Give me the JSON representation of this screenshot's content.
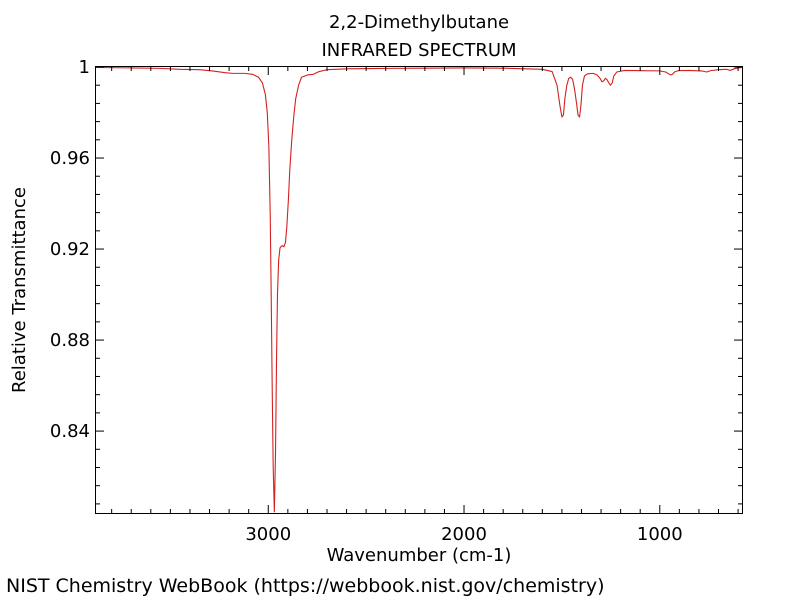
{
  "footer": {
    "credit": "NIST Chemistry WebBook (https://webbook.nist.gov/chemistry)"
  },
  "chart_data": {
    "type": "line",
    "title": "2,2-Dimethylbutane",
    "subtitle": "INFRARED SPECTRUM",
    "xlabel": "Wavenumber (cm-1)",
    "ylabel": "Relative Transmittance",
    "xlim": [
      3880,
      580
    ],
    "ylim": [
      0.804,
      1.0
    ],
    "x_reversed": true,
    "x_ticks": [
      {
        "value": 3000,
        "label": "3000"
      },
      {
        "value": 2000,
        "label": "2000"
      },
      {
        "value": 1000,
        "label": "1000"
      }
    ],
    "y_ticks": [
      {
        "value": 1.0,
        "label": "1"
      },
      {
        "value": 0.96,
        "label": "0.96"
      },
      {
        "value": 0.92,
        "label": "0.92"
      },
      {
        "value": 0.88,
        "label": "0.88"
      },
      {
        "value": 0.84,
        "label": "0.84"
      }
    ],
    "grid": false,
    "line_color": "#d62020",
    "series": [
      {
        "points": [
          [
            3880,
            0.9998
          ],
          [
            3700,
            0.9996
          ],
          [
            3550,
            0.9994
          ],
          [
            3450,
            0.999
          ],
          [
            3350,
            0.9988
          ],
          [
            3280,
            0.9982
          ],
          [
            3220,
            0.9975
          ],
          [
            3180,
            0.9972
          ],
          [
            3120,
            0.9972
          ],
          [
            3080,
            0.9968
          ],
          [
            3050,
            0.9955
          ],
          [
            3030,
            0.993
          ],
          [
            3015,
            0.988
          ],
          [
            3005,
            0.98
          ],
          [
            2997,
            0.965
          ],
          [
            2990,
            0.935
          ],
          [
            2985,
            0.9
          ],
          [
            2980,
            0.86
          ],
          [
            2975,
            0.825
          ],
          [
            2969,
            0.8045
          ],
          [
            2963,
            0.83
          ],
          [
            2958,
            0.87
          ],
          [
            2953,
            0.9
          ],
          [
            2947,
            0.915
          ],
          [
            2940,
            0.9205
          ],
          [
            2930,
            0.9215
          ],
          [
            2920,
            0.921
          ],
          [
            2912,
            0.923
          ],
          [
            2905,
            0.93
          ],
          [
            2897,
            0.942
          ],
          [
            2890,
            0.955
          ],
          [
            2880,
            0.968
          ],
          [
            2870,
            0.978
          ],
          [
            2860,
            0.986
          ],
          [
            2845,
            0.992
          ],
          [
            2830,
            0.9955
          ],
          [
            2800,
            0.9965
          ],
          [
            2770,
            0.9968
          ],
          [
            2740,
            0.998
          ],
          [
            2700,
            0.9988
          ],
          [
            2600,
            0.9992
          ],
          [
            2400,
            0.9994
          ],
          [
            2200,
            0.9995
          ],
          [
            2000,
            0.9996
          ],
          [
            1800,
            0.9995
          ],
          [
            1600,
            0.999
          ],
          [
            1550,
            0.998
          ],
          [
            1525,
            0.992
          ],
          [
            1510,
            0.983
          ],
          [
            1500,
            0.978
          ],
          [
            1492,
            0.979
          ],
          [
            1485,
            0.986
          ],
          [
            1475,
            0.992
          ],
          [
            1465,
            0.995
          ],
          [
            1455,
            0.9955
          ],
          [
            1445,
            0.9945
          ],
          [
            1435,
            0.99
          ],
          [
            1425,
            0.984
          ],
          [
            1418,
            0.979
          ],
          [
            1410,
            0.978
          ],
          [
            1403,
            0.983
          ],
          [
            1395,
            0.992
          ],
          [
            1385,
            0.996
          ],
          [
            1370,
            0.997
          ],
          [
            1340,
            0.9972
          ],
          [
            1320,
            0.9965
          ],
          [
            1305,
            0.995
          ],
          [
            1295,
            0.9935
          ],
          [
            1285,
            0.994
          ],
          [
            1278,
            0.995
          ],
          [
            1270,
            0.9945
          ],
          [
            1260,
            0.993
          ],
          [
            1252,
            0.992
          ],
          [
            1243,
            0.993
          ],
          [
            1235,
            0.996
          ],
          [
            1220,
            0.9978
          ],
          [
            1180,
            0.9985
          ],
          [
            1100,
            0.9984
          ],
          [
            1000,
            0.9983
          ],
          [
            970,
            0.9978
          ],
          [
            955,
            0.997
          ],
          [
            945,
            0.9965
          ],
          [
            935,
            0.9968
          ],
          [
            925,
            0.9978
          ],
          [
            905,
            0.9984
          ],
          [
            850,
            0.9985
          ],
          [
            780,
            0.9982
          ],
          [
            760,
            0.9978
          ],
          [
            740,
            0.9984
          ],
          [
            700,
            0.9988
          ],
          [
            660,
            0.999
          ],
          [
            640,
            0.9985
          ],
          [
            620,
            0.9992
          ],
          [
            600,
            0.9996
          ],
          [
            580,
            0.9998
          ]
        ]
      }
    ]
  }
}
